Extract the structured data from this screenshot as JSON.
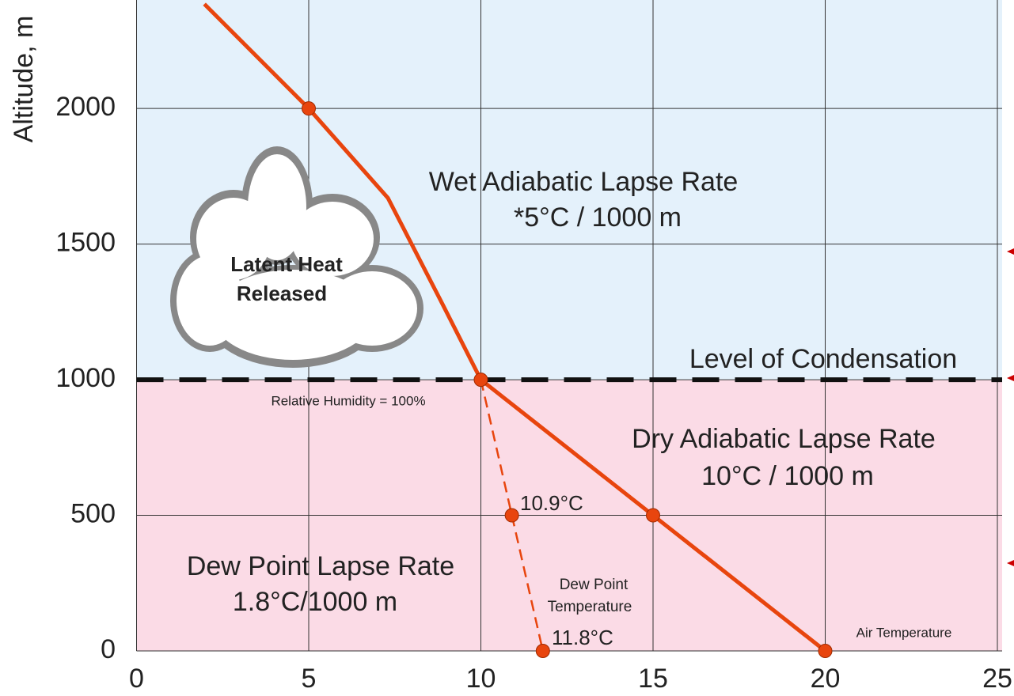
{
  "chart_data": {
    "type": "line",
    "y_label": "Altitude, m",
    "xlim": [
      0,
      25
    ],
    "ylim": [
      0,
      2400
    ],
    "xticks": [
      0,
      5,
      10,
      15,
      20,
      25
    ],
    "yticks": [
      0,
      500,
      1000,
      1500,
      2000
    ],
    "grid": true,
    "condensation_level": 1000,
    "upper_color": "#e4f1fb",
    "lower_color": "#fbdbe6",
    "series": [
      {
        "color": "#e8450e",
        "dashed": false,
        "x": [
          20,
          15,
          10,
          8.8,
          7.3,
          5,
          1.97
        ],
        "values": [
          0,
          500,
          1000,
          1300,
          1670,
          2000,
          2385
        ]
      },
      {
        "color": "#e8450e",
        "dashed": true,
        "x": [
          10,
          10.9,
          11.8
        ],
        "values": [
          1000,
          500,
          0
        ]
      }
    ],
    "markers": {
      "color": "#e8450e",
      "x": [
        5,
        10,
        15,
        20,
        10.9,
        11.8
      ],
      "values": [
        2000,
        1000,
        500,
        0,
        500,
        0
      ]
    },
    "annotations": [
      "Wet Adiabatic Lapse Rate",
      "*5°C / 1000 m",
      "Latent Heat",
      "Released",
      "Level of Condensation",
      "Relative Humidity = 100%",
      "Dry Adiabatic Lapse Rate",
      "10°C / 1000 m",
      "10.9°C",
      "Dew Point Lapse Rate",
      "1.8°C/1000 m",
      "Dew Point",
      "Temperature",
      "11.8°C",
      "Air Temperature"
    ]
  }
}
